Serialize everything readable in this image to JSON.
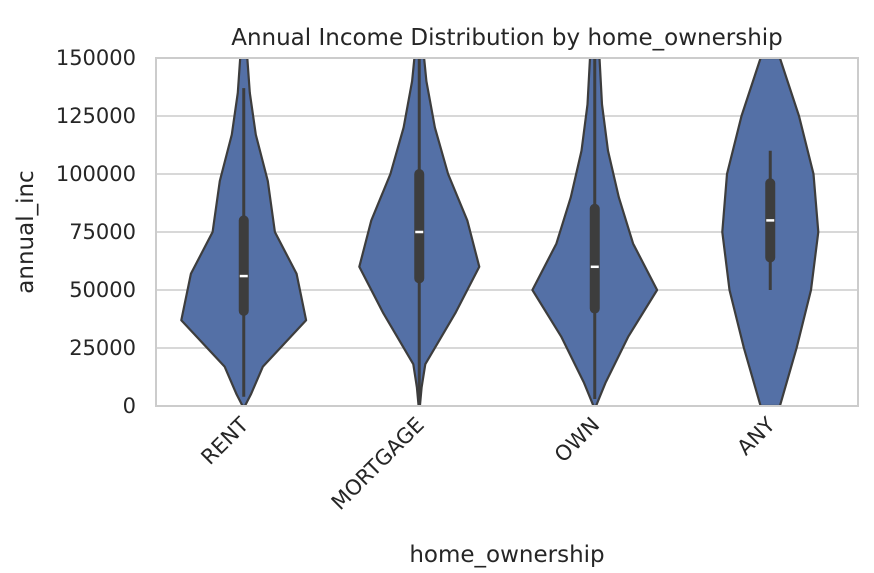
{
  "chart_data": {
    "type": "violin",
    "title": "Annual Income Distribution by home_ownership",
    "xlabel": "home_ownership",
    "ylabel": "annual_inc",
    "ylim": [
      0,
      150000
    ],
    "yticks": [
      0,
      25000,
      50000,
      75000,
      100000,
      125000,
      150000
    ],
    "grid": true,
    "color": "#5470a6",
    "edge_color": "#3d3d3d",
    "categories": [
      "RENT",
      "MORTGAGE",
      "OWN",
      "ANY"
    ],
    "violins": [
      {
        "category": "RENT",
        "q1": 41000,
        "median": 56000,
        "q3": 80000,
        "whisker_low": 4000,
        "whisker_high": 137000,
        "density": [
          [
            0,
            0.01
          ],
          [
            5000,
            0.06
          ],
          [
            17000,
            0.16
          ],
          [
            37000,
            0.52
          ],
          [
            57000,
            0.44
          ],
          [
            75000,
            0.26
          ],
          [
            97000,
            0.2
          ],
          [
            117000,
            0.1
          ],
          [
            135000,
            0.05
          ],
          [
            150000,
            0.03
          ]
        ]
      },
      {
        "category": "MORTGAGE",
        "q1": 55000,
        "median": 75000,
        "q3": 100000,
        "whisker_low": 2000,
        "whisker_high": 150000,
        "density": [
          [
            0,
            0.005
          ],
          [
            8000,
            0.02
          ],
          [
            18000,
            0.05
          ],
          [
            40000,
            0.3
          ],
          [
            60000,
            0.5
          ],
          [
            80000,
            0.4
          ],
          [
            100000,
            0.24
          ],
          [
            120000,
            0.13
          ],
          [
            140000,
            0.06
          ],
          [
            150000,
            0.04
          ]
        ]
      },
      {
        "category": "OWN",
        "q1": 42000,
        "median": 60000,
        "q3": 85000,
        "whisker_low": 3000,
        "whisker_high": 150000,
        "density": [
          [
            0,
            0.01
          ],
          [
            10000,
            0.09
          ],
          [
            30000,
            0.28
          ],
          [
            50000,
            0.52
          ],
          [
            70000,
            0.32
          ],
          [
            90000,
            0.2
          ],
          [
            110000,
            0.11
          ],
          [
            130000,
            0.06
          ],
          [
            150000,
            0.04
          ]
        ]
      },
      {
        "category": "ANY",
        "q1": 64000,
        "median": 80000,
        "q3": 96000,
        "whisker_low": 50000,
        "whisker_high": 110000,
        "density": [
          [
            0,
            0.08
          ],
          [
            25000,
            0.22
          ],
          [
            50000,
            0.34
          ],
          [
            75000,
            0.4
          ],
          [
            100000,
            0.36
          ],
          [
            125000,
            0.24
          ],
          [
            150000,
            0.08
          ]
        ]
      }
    ]
  }
}
